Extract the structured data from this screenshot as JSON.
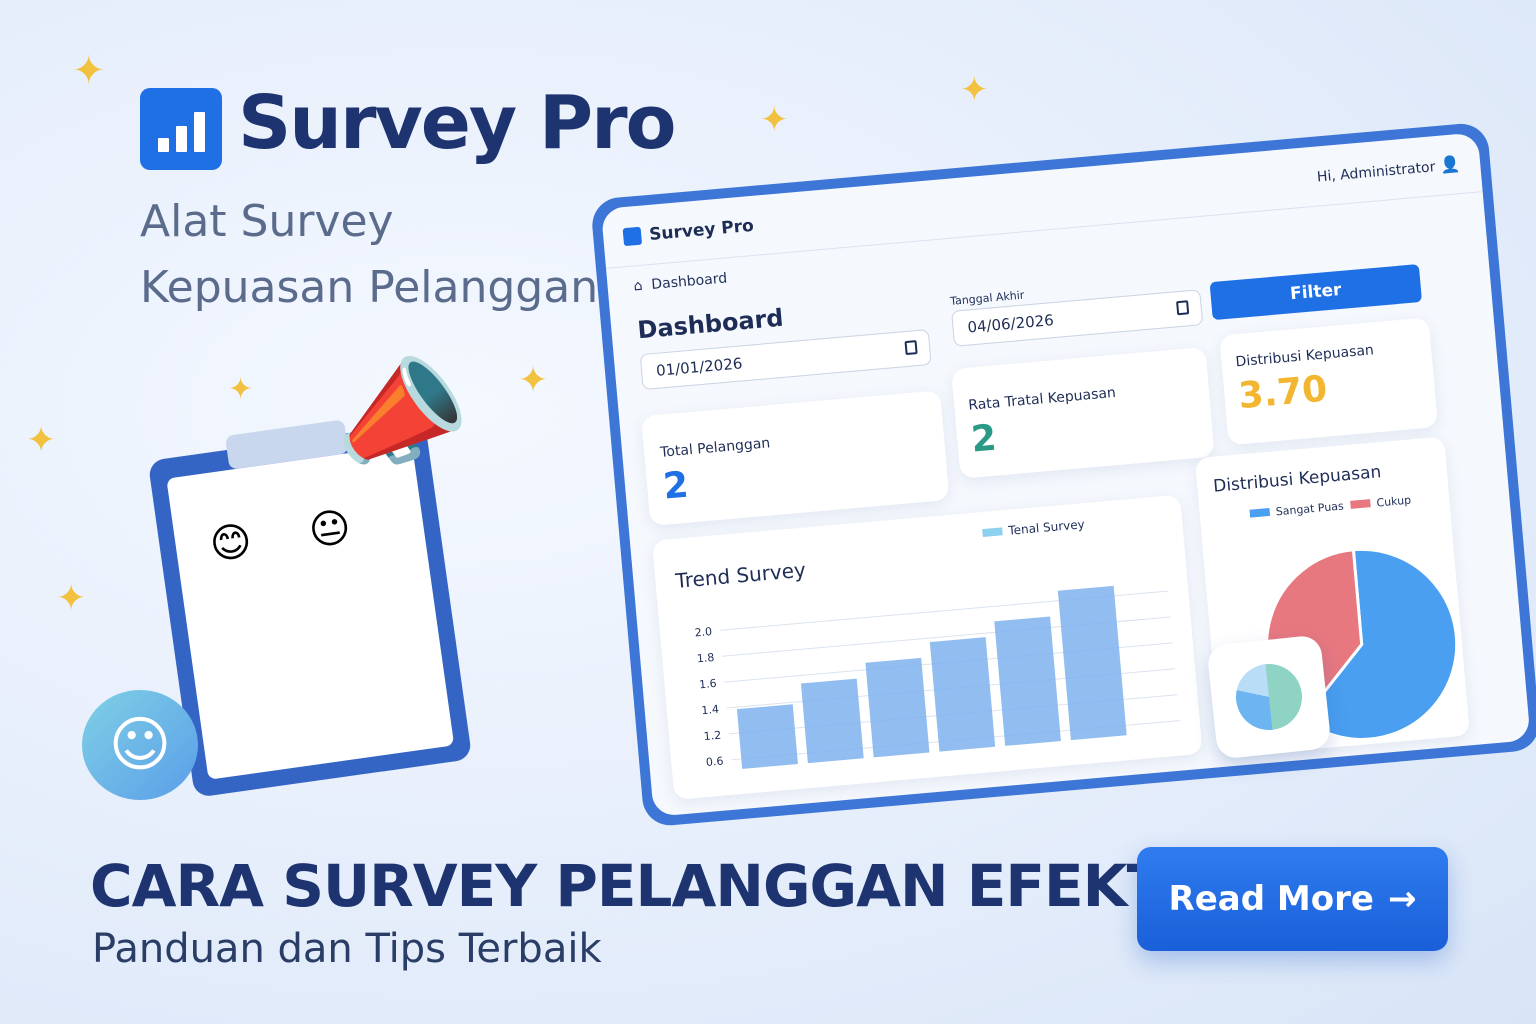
{
  "brand": {
    "name": "Survey Pro",
    "subtitle_line1": "Alat Survey",
    "subtitle_line2": "Kepuasan Pelanggan"
  },
  "headline": "CARA SURVEY PELANGGAN EFEKTIF",
  "tagline": "Panduan dan Tips Terbaik",
  "cta": {
    "label": "Read More",
    "icon": "arrow-right-icon"
  },
  "dashboard": {
    "app_name": "Survey Pro",
    "greeting": "Hi, Administrator",
    "breadcrumb": "Dashboard",
    "page_title": "Dashboard",
    "start_date": "01/01/2026",
    "end_date_label": "Tanggal Akhir",
    "end_date": "04/06/2026",
    "filter_label": "Filter",
    "cards": [
      {
        "label": "Total Pelanggan",
        "value": "2",
        "color": "#1f6fe5"
      },
      {
        "label": "Rata Tratal Kepuasan",
        "value": "2",
        "color": "#2a9a86"
      },
      {
        "label": "Distribusi Kepuasan",
        "value": "3.70",
        "color": "#f2b631"
      }
    ],
    "colors": {
      "accent": "#1f6fe5",
      "sangat_puas": "#4a9ff0",
      "cukup": "#e87880"
    }
  },
  "chart_data": [
    {
      "type": "bar",
      "title": "Trend Survey",
      "legend": [
        "Tenal Survey"
      ],
      "yticks": [
        "0.6",
        "1.2",
        "1.4",
        "1.6",
        "1.8",
        "2.0"
      ],
      "values": [
        1.2,
        1.4,
        1.55,
        1.7,
        1.85,
        2.1
      ],
      "color": "#7fb2ee"
    },
    {
      "type": "pie",
      "title": "Distribusi Kepuasan",
      "legend_position": "top",
      "series": [
        {
          "name": "Sangat Puas",
          "value": 62,
          "color": "#4a9ff0"
        },
        {
          "name": "Cukup",
          "value": 38,
          "color": "#e87880"
        }
      ]
    }
  ]
}
